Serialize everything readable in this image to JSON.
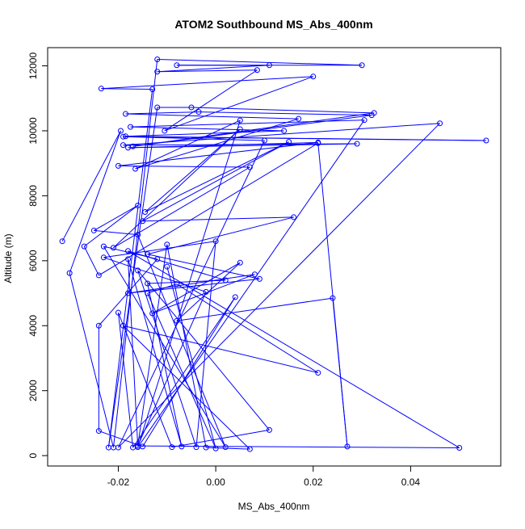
{
  "chart_data": {
    "type": "line",
    "title": "ATOM2 Southbound MS_Abs_400nm",
    "xlabel": "MS_Abs_400nm",
    "ylabel": "Altitude (m)",
    "xlim": [
      -0.0345,
      0.0585
    ],
    "ylim": [
      -320,
      12560
    ],
    "x_ticks": [
      -0.02,
      0.0,
      0.02,
      0.04
    ],
    "x_tick_labels": [
      "-0.02",
      "0.00",
      "0.02",
      "0.04"
    ],
    "y_ticks": [
      0,
      2000,
      4000,
      6000,
      8000,
      10000,
      12000
    ],
    "y_tick_labels": [
      "0",
      "2000",
      "4000",
      "6000",
      "8000",
      "10000",
      "12000"
    ],
    "grid": false,
    "series": [
      {
        "color": "#0000ff",
        "marker": "open-circle",
        "points": [
          [
            -0.0315,
            6600
          ],
          [
            -0.0195,
            10000
          ],
          [
            -0.03,
            5620
          ],
          [
            -0.021,
            250
          ],
          [
            -0.012,
            12200
          ],
          [
            0.03,
            12020
          ],
          [
            -0.008,
            12020
          ],
          [
            0.011,
            12020
          ],
          [
            -0.012,
            11820
          ],
          [
            0.0085,
            11870
          ],
          [
            -0.0105,
            10000
          ],
          [
            0.02,
            11670
          ],
          [
            -0.0235,
            11300
          ],
          [
            -0.013,
            11280
          ],
          [
            -0.022,
            250
          ],
          [
            -0.012,
            10720
          ],
          [
            -0.005,
            10720
          ],
          [
            0.0325,
            10550
          ],
          [
            -0.017,
            9520
          ],
          [
            0.032,
            10480
          ],
          [
            -0.0035,
            10580
          ],
          [
            -0.0185,
            10520
          ],
          [
            0.017,
            10370
          ],
          [
            -0.0165,
            8830
          ],
          [
            0.005,
            10320
          ],
          [
            -0.016,
            260
          ],
          [
            0.0305,
            10330
          ],
          [
            -0.0175,
            10120
          ],
          [
            0.014,
            10000
          ],
          [
            -0.0185,
            9830
          ],
          [
            0.0555,
            9700
          ],
          [
            -0.019,
            9820
          ],
          [
            0.01,
            9700
          ],
          [
            -0.02,
            250
          ],
          [
            0.046,
            10230
          ],
          [
            -0.019,
            9560
          ],
          [
            0.029,
            9600
          ],
          [
            -0.018,
            9480
          ],
          [
            0.021,
            9640
          ],
          [
            -0.02,
            8920
          ],
          [
            0.007,
            8880
          ],
          [
            -0.021,
            6400
          ],
          [
            0.005,
            10050
          ],
          [
            -0.0145,
            7500
          ],
          [
            0.015,
            9660
          ],
          [
            -0.015,
            7220
          ],
          [
            0.016,
            7340
          ],
          [
            -0.014,
            6200
          ],
          [
            0.009,
            5440
          ],
          [
            -0.018,
            5000
          ],
          [
            0.008,
            5580
          ],
          [
            -0.013,
            4380
          ],
          [
            0.005,
            5940
          ],
          [
            -0.008,
            4150
          ],
          [
            0.024,
            4850
          ],
          [
            0.027,
            280
          ],
          [
            0.021,
            9620
          ],
          [
            -0.024,
            5550
          ],
          [
            -0.027,
            6440
          ],
          [
            -0.016,
            7700
          ],
          [
            -0.025,
            6930
          ],
          [
            -0.016,
            6800
          ],
          [
            0.002,
            260
          ],
          [
            -0.023,
            6440
          ],
          [
            -0.012,
            6050
          ],
          [
            -0.024,
            4000
          ],
          [
            -0.024,
            760
          ],
          [
            -0.015,
            280
          ],
          [
            0.004,
            4880
          ],
          [
            -0.017,
            250
          ],
          [
            -0.02,
            4400
          ],
          [
            -0.009,
            260
          ],
          [
            0.011,
            790
          ],
          [
            -0.016,
            5700
          ],
          [
            -0.004,
            260
          ],
          [
            0.0,
            6600
          ],
          [
            -0.023,
            6100
          ],
          [
            -0.002,
            5040
          ],
          [
            -0.016,
            300
          ],
          [
            0.05,
            240
          ],
          [
            -0.018,
            6300
          ],
          [
            0.002,
            5400
          ],
          [
            -0.014,
            5300
          ],
          [
            -0.007,
            280
          ],
          [
            -0.018,
            6050
          ],
          [
            -0.016,
            300
          ],
          [
            -0.01,
            6500
          ],
          [
            -0.002,
            250
          ],
          [
            0.007,
            200
          ],
          [
            -0.019,
            4000
          ],
          [
            0.021,
            2550
          ],
          [
            -0.008,
            5280
          ],
          [
            -0.014,
            5000
          ],
          [
            0.0,
            220
          ],
          [
            -0.01,
            5820
          ]
        ]
      }
    ]
  }
}
